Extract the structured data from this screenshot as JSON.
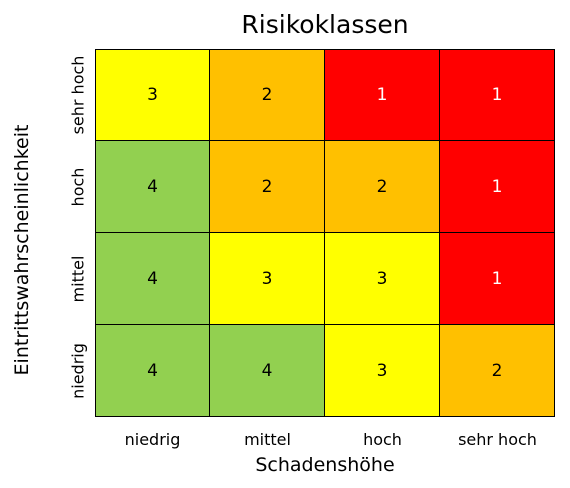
{
  "chart_data": {
    "type": "heatmap",
    "title": "Risikoklassen",
    "xlabel": "Schadenshöhe",
    "ylabel": "Eintrittswahrscheinlichkeit",
    "x_categories": [
      "niedrig",
      "mittel",
      "hoch",
      "sehr hoch"
    ],
    "y_categories": [
      "sehr hoch",
      "hoch",
      "mittel",
      "niedrig"
    ],
    "values": [
      [
        3,
        2,
        1,
        1
      ],
      [
        4,
        2,
        2,
        1
      ],
      [
        4,
        3,
        3,
        1
      ],
      [
        4,
        4,
        3,
        2
      ]
    ],
    "class_colors": {
      "1": "#ff0000",
      "2": "#ffc000",
      "3": "#ffff00",
      "4": "#92d050"
    },
    "class_text_colors": {
      "1": "#ffffff",
      "2": "#000000",
      "3": "#000000",
      "4": "#000000"
    },
    "grid": true,
    "legend": "none"
  }
}
